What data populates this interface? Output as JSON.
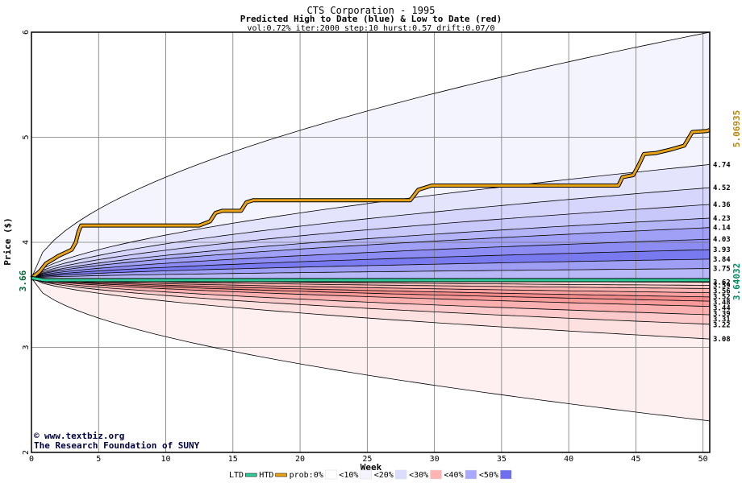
{
  "chart_data": {
    "type": "area",
    "title": "CTS Corporation - 1995",
    "subtitle": "Predicted High to Date (blue) &  Low to Date (red)",
    "params": "vol:0.72% iter:2000 step:10 hurst:0.57 drift:0.07/0",
    "xlabel": "Week",
    "ylabel": "Price ($)",
    "xlim": [
      0,
      50.5
    ],
    "ylim": [
      2,
      6
    ],
    "x_ticks": [
      0,
      5,
      10,
      15,
      20,
      25,
      30,
      35,
      40,
      45,
      50
    ],
    "y_ticks": [
      2,
      3,
      4,
      5,
      6
    ],
    "grid": true,
    "start_value": "3.66",
    "start_price": 3.66,
    "end_markers": {
      "htd_value": "5.06935",
      "ltd_value": "3.64032",
      "htd_color": "#b8860b",
      "ltd_color": "#008b62"
    },
    "envelope": {
      "upper_end": 6.0,
      "lower_end": 2.3
    },
    "upper_band_end_values": [
      4.74,
      4.52,
      4.36,
      4.23,
      4.14,
      4.03,
      3.93,
      3.84,
      3.75,
      3.62
    ],
    "lower_band_end_values": [
      3.59,
      3.56,
      3.52,
      3.48,
      3.44,
      3.39,
      3.31,
      3.22,
      3.08
    ],
    "band_labels_upper": [
      "4.74",
      "4.52",
      "4.36",
      "4.23",
      "4.14",
      "4.03",
      "3.93",
      "3.84",
      "3.75",
      "3.62"
    ],
    "band_labels_lower": [
      "3.59",
      "3.56",
      "3.52",
      "3.48",
      "3.44",
      "3.39",
      "3.31",
      "3.22",
      "3.08"
    ],
    "series": [
      {
        "name": "HTD",
        "color": "#e8a317",
        "points": [
          [
            0,
            3.66
          ],
          [
            0.6,
            3.72
          ],
          [
            1.1,
            3.8
          ],
          [
            1.5,
            3.83
          ],
          [
            2.0,
            3.87
          ],
          [
            2.5,
            3.9
          ],
          [
            3.0,
            3.93
          ],
          [
            3.3,
            4.0
          ],
          [
            3.5,
            4.1
          ],
          [
            3.7,
            4.16
          ],
          [
            6,
            4.16
          ],
          [
            8,
            4.16
          ],
          [
            10,
            4.16
          ],
          [
            12.5,
            4.16
          ],
          [
            13.3,
            4.2
          ],
          [
            13.7,
            4.28
          ],
          [
            14.2,
            4.3
          ],
          [
            15.6,
            4.3
          ],
          [
            16.0,
            4.38
          ],
          [
            16.5,
            4.4
          ],
          [
            20,
            4.4
          ],
          [
            25,
            4.4
          ],
          [
            28.2,
            4.4
          ],
          [
            28.8,
            4.5
          ],
          [
            29.8,
            4.54
          ],
          [
            35,
            4.54
          ],
          [
            40,
            4.54
          ],
          [
            43.7,
            4.54
          ],
          [
            44.0,
            4.62
          ],
          [
            44.8,
            4.64
          ],
          [
            45.2,
            4.73
          ],
          [
            45.6,
            4.84
          ],
          [
            46.5,
            4.85
          ],
          [
            47.5,
            4.88
          ],
          [
            48.6,
            4.92
          ],
          [
            49.2,
            5.05
          ],
          [
            50.3,
            5.06
          ],
          [
            50.5,
            5.07
          ]
        ]
      },
      {
        "name": "LTD",
        "color": "#2ecc9a",
        "points": [
          [
            0,
            3.66
          ],
          [
            1,
            3.64
          ],
          [
            50.5,
            3.64
          ]
        ]
      }
    ],
    "legend": [
      {
        "label": "LTD",
        "color": "#2ecc9a"
      },
      {
        "label": "HTD",
        "color": "#e8a317"
      },
      {
        "label": "prob:0%",
        "color": "#ffffff"
      },
      {
        "label": "<10%",
        "color": "#f4f4ff"
      },
      {
        "label": "<20%",
        "color": "#dcdcff"
      },
      {
        "label": "<30%",
        "color": "#ffb4b4"
      },
      {
        "label": "<40%",
        "color": "#a8a8ff"
      },
      {
        "label": "<50%",
        "color": "#6e6ef0"
      }
    ],
    "legend_placement": "bottom"
  },
  "credits": {
    "site": "www.textbiz.org",
    "org": "The Research Foundation of SUNY"
  },
  "colors": {
    "upper_band_fills": [
      "#f4f4fe",
      "#e4e4fd",
      "#d6d6fc",
      "#c8c8fb",
      "#b4b4f9",
      "#a0a0f6",
      "#8c8cf3",
      "#7a7af0",
      "#9e9ef4",
      "#b8b8f8",
      "#d2d2fb"
    ],
    "lower_band_fills": [
      "#ffd6d6",
      "#ffc4c4",
      "#ffb2b2",
      "#f9a0a0",
      "#f28c8c",
      "#f69a9a",
      "#fab0b0",
      "#fccaca",
      "#fde0e0",
      "#fef0f0"
    ]
  }
}
